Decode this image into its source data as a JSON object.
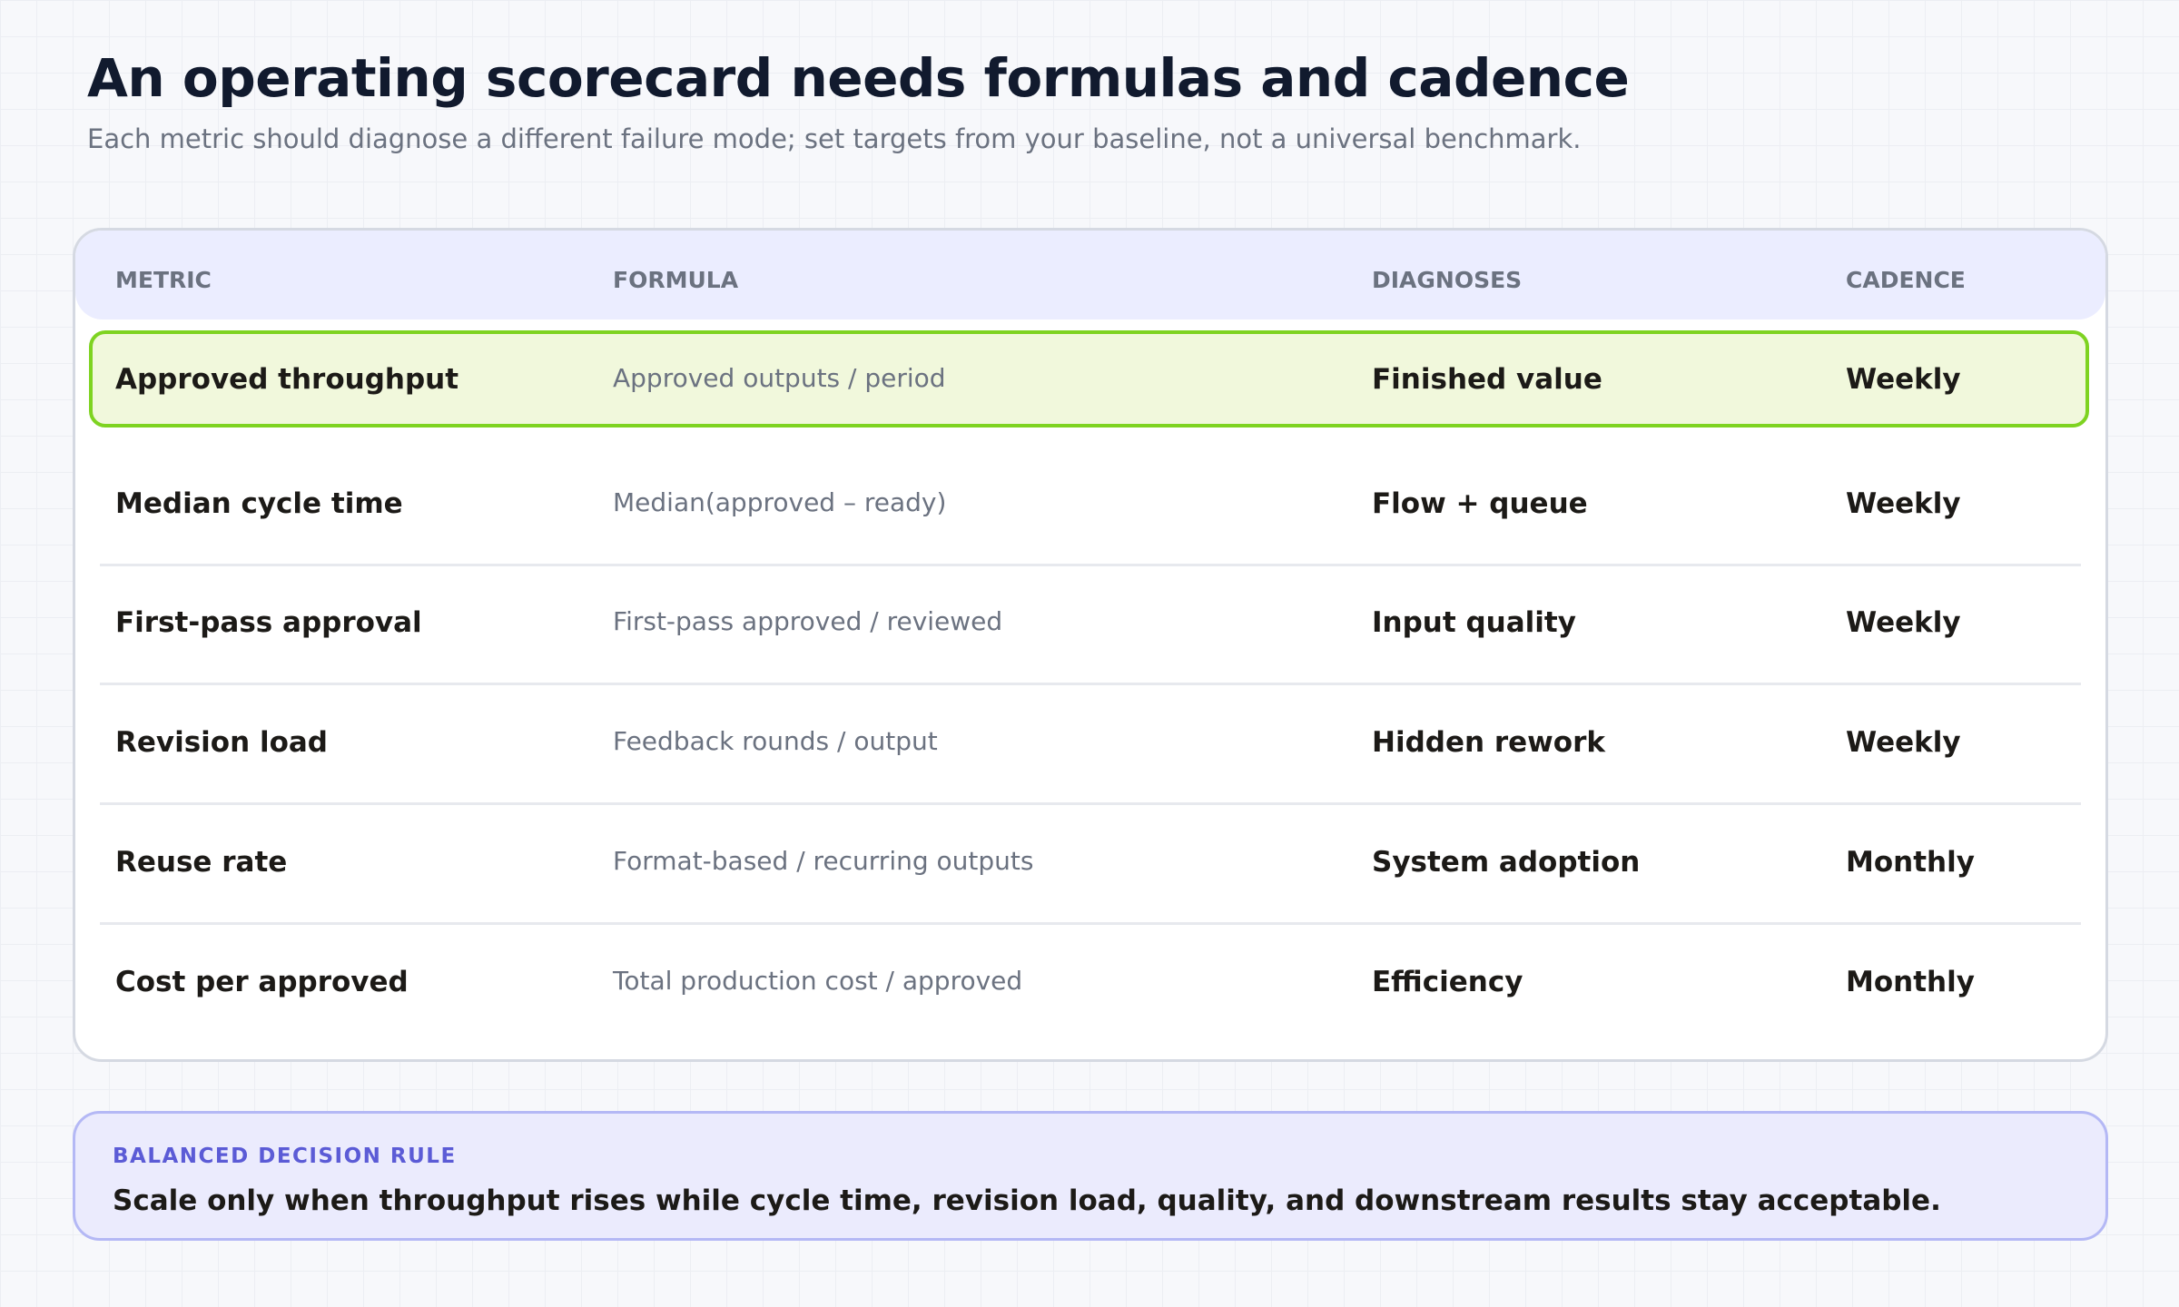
{
  "header": {
    "title": "An operating scorecard needs formulas and cadence",
    "subtitle": "Each metric should diagnose a different failure mode; set targets from your baseline, not a universal benchmark."
  },
  "table": {
    "columns": [
      "METRIC",
      "FORMULA",
      "DIAGNOSES",
      "CADENCE"
    ],
    "rows": [
      [
        "Approved throughput",
        "Approved outputs / period",
        "Finished value",
        "Weekly"
      ],
      [
        "Median cycle time",
        "Median(approved – ready)",
        "Flow + queue",
        "Weekly"
      ],
      [
        "First-pass approval",
        "First-pass approved / reviewed",
        "Input quality",
        "Weekly"
      ],
      [
        "Revision load",
        "Feedback rounds / output",
        "Hidden rework",
        "Weekly"
      ],
      [
        "Reuse rate",
        "Format-based / recurring outputs",
        "System adoption",
        "Monthly"
      ],
      [
        "Cost per approved",
        "Total production cost / approved",
        "Efficiency",
        "Monthly"
      ]
    ]
  },
  "callout": {
    "label": "BALANCED DECISION RULE",
    "text": "Scale only when throughput rises while cycle time, revision load, quality, and downstream results stay acceptable."
  }
}
